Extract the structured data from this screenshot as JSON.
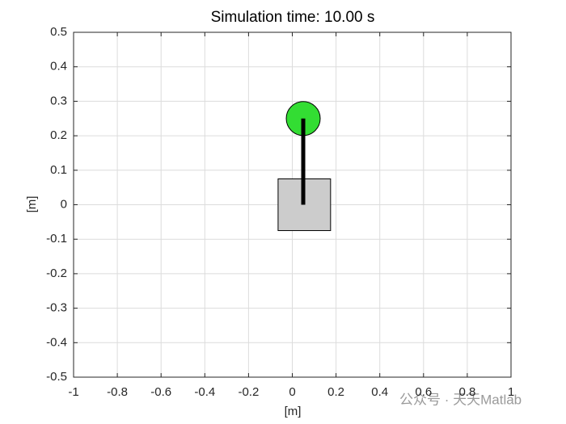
{
  "chart_data": {
    "type": "cartpole",
    "title": "Simulation time: 10.00 s",
    "xlabel": "[m]",
    "ylabel": "[m]",
    "xlim": [
      -1,
      1
    ],
    "ylim": [
      -0.5,
      0.5
    ],
    "xticks": [
      -1,
      -0.8,
      -0.6,
      -0.4,
      -0.2,
      0,
      0.2,
      0.4,
      0.6,
      0.8,
      1
    ],
    "yticks": [
      -0.5,
      -0.4,
      -0.3,
      -0.2,
      -0.1,
      0,
      0.1,
      0.2,
      0.3,
      0.4,
      0.5
    ],
    "grid": true,
    "cart": {
      "x": [
        -0.065,
        0.175
      ],
      "y": [
        -0.075,
        0.075
      ],
      "color": "#cccccc"
    },
    "pole": {
      "x": [
        0.05,
        0.05
      ],
      "y": [
        0,
        0.25
      ],
      "color": "#000000"
    },
    "bob": {
      "x": 0.05,
      "y": 0.25,
      "color": "#33dd33"
    }
  },
  "watermark": "公众号 · 天天Matlab"
}
